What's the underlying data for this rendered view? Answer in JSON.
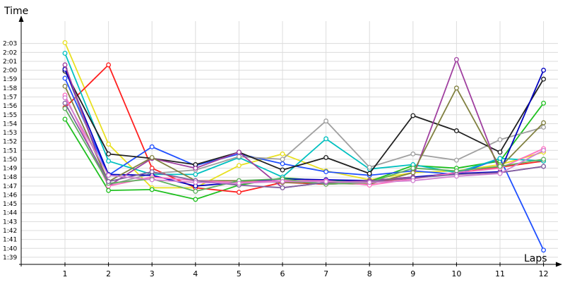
{
  "chart_data": {
    "type": "line",
    "xlabel": "Laps",
    "ylabel": "Time",
    "xlim": [
      0,
      12.3
    ],
    "ylim": [
      98.2,
      124.4
    ],
    "grid": true,
    "categories": [
      "1",
      "2",
      "3",
      "4",
      "5",
      "6",
      "7",
      "8",
      "9",
      "10",
      "11",
      "12"
    ],
    "yticks": [
      {
        "v": 99,
        "label": "1:39"
      },
      {
        "v": 100,
        "label": "1:40"
      },
      {
        "v": 101,
        "label": "1:41"
      },
      {
        "v": 102,
        "label": "1:42"
      },
      {
        "v": 103,
        "label": "1:43"
      },
      {
        "v": 104,
        "label": "1:44"
      },
      {
        "v": 105,
        "label": "1:45"
      },
      {
        "v": 106,
        "label": "1:46"
      },
      {
        "v": 107,
        "label": "1:47"
      },
      {
        "v": 108,
        "label": "1:48"
      },
      {
        "v": 109,
        "label": "1:49"
      },
      {
        "v": 110,
        "label": "1:50"
      },
      {
        "v": 111,
        "label": "1:51"
      },
      {
        "v": 112,
        "label": "1:52"
      },
      {
        "v": 113,
        "label": "1:53"
      },
      {
        "v": 114,
        "label": "1:54"
      },
      {
        "v": 115,
        "label": "1:55"
      },
      {
        "v": 116,
        "label": "1:56"
      },
      {
        "v": 117,
        "label": "1:57"
      },
      {
        "v": 118,
        "label": "1:58"
      },
      {
        "v": 119,
        "label": "1:59"
      },
      {
        "v": 120,
        "label": "2:00"
      },
      {
        "v": 121,
        "label": "2:01"
      },
      {
        "v": 122,
        "label": "2:02"
      },
      {
        "v": 123,
        "label": "2:03"
      }
    ],
    "series": [
      {
        "color": "#e8e020",
        "values": [
          123.1,
          111.7,
          106.8,
          106.8,
          109.3,
          110.6,
          108.7,
          107.7,
          108.5,
          108.7,
          109.4,
          110.8
        ]
      },
      {
        "color": "#20c020",
        "values": [
          114.5,
          106.5,
          106.6,
          105.5,
          107.1,
          107.9,
          107.6,
          107.5,
          109.3,
          109.0,
          109.8,
          116.3
        ]
      },
      {
        "color": "#ff2020",
        "values": [
          115.8,
          120.6,
          109.0,
          106.8,
          106.3,
          107.4,
          107.2,
          107.4,
          107.9,
          108.5,
          109.1,
          109.8
        ]
      },
      {
        "color": "#2050ff",
        "values": [
          119.1,
          108.2,
          111.4,
          109.3,
          110.6,
          109.5,
          108.6,
          108.2,
          108.7,
          108.3,
          110.1,
          99.8
        ]
      },
      {
        "color": "#00c0c0",
        "values": [
          121.9,
          109.8,
          108.3,
          108.3,
          110.2,
          108.0,
          112.3,
          108.9,
          109.4,
          108.5,
          110.1,
          109.8
        ]
      },
      {
        "color": "#a0a0a0",
        "values": [
          120.2,
          107.1,
          108.4,
          108.8,
          110.3,
          110.0,
          114.3,
          109.1,
          110.6,
          109.9,
          112.2,
          113.6
        ]
      },
      {
        "color": "#202020",
        "values": [
          119.9,
          110.6,
          110.1,
          109.4,
          110.8,
          108.8,
          110.2,
          108.4,
          114.9,
          113.2,
          110.8,
          119.0
        ]
      },
      {
        "color": "#0000c0",
        "values": [
          120.1,
          108.3,
          108.2,
          107.0,
          107.4,
          107.8,
          107.7,
          107.6,
          108.0,
          108.4,
          108.6,
          120.0
        ]
      },
      {
        "color": "#a040a0",
        "values": [
          120.6,
          107.0,
          110.1,
          109.0,
          110.8,
          106.8,
          107.4,
          107.6,
          108.0,
          121.2,
          108.5,
          109.2
        ]
      },
      {
        "color": "#808040",
        "values": [
          118.2,
          107.5,
          110.2,
          107.6,
          107.6,
          107.4,
          107.3,
          107.2,
          108.5,
          118.0,
          109.1,
          114.1
        ]
      },
      {
        "color": "#ff70c0",
        "values": [
          117.2,
          107.0,
          108.0,
          107.6,
          107.4,
          107.6,
          107.6,
          107.1,
          107.8,
          108.5,
          109.0,
          111.2
        ]
      },
      {
        "color": "#60b060",
        "values": [
          115.7,
          107.3,
          107.8,
          106.4,
          107.6,
          107.8,
          107.2,
          107.4,
          109.0,
          108.7,
          109.2,
          110.0
        ]
      },
      {
        "color": "#8060a0",
        "values": [
          116.3,
          107.5,
          108.6,
          107.6,
          107.1,
          106.8,
          107.4,
          107.5,
          107.9,
          108.3,
          108.5,
          109.2
        ]
      },
      {
        "color": "#d080d0",
        "values": [
          116.9,
          108.2,
          107.7,
          107.4,
          107.3,
          107.5,
          107.5,
          107.4,
          107.6,
          108.1,
          108.4,
          111.0
        ]
      }
    ]
  }
}
